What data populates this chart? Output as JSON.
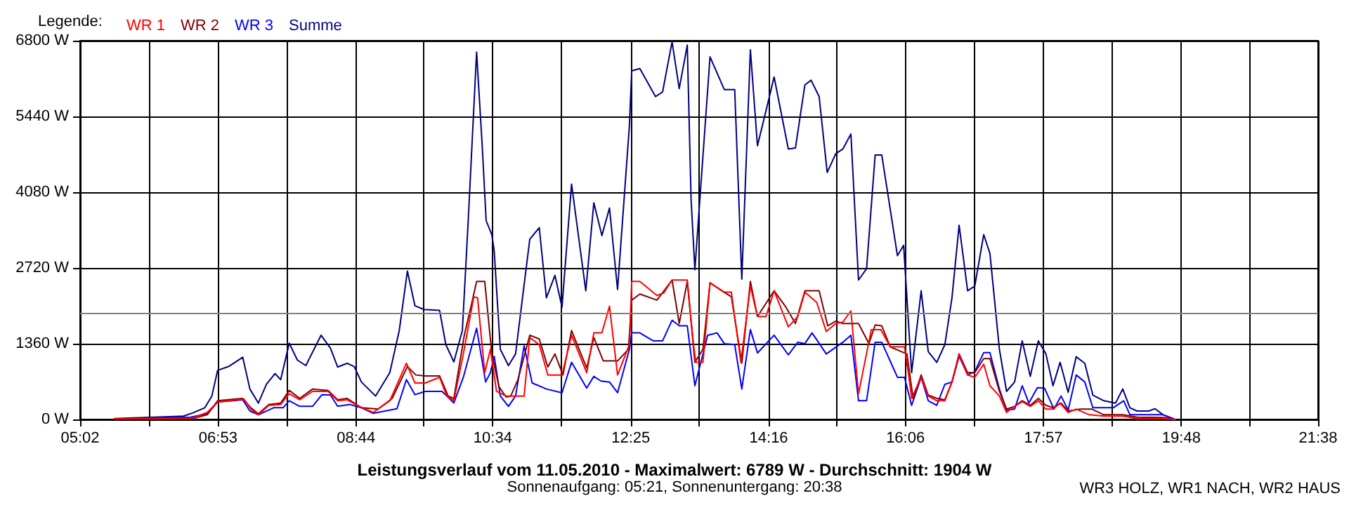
{
  "chart_data": {
    "type": "line",
    "title": "Leistungsverlauf vom 11.05.2010 - Maximalwert: 6789 W - Durchschnitt: 1904 W",
    "subtitle": "Sonnenaufgang: 05:21, Sonnenuntergang: 20:38",
    "legend_title": "Legende:",
    "legend": "top left",
    "grid": true,
    "marker": "none",
    "line_style": "solid",
    "annotations": [
      "WR3 HOLZ, WR1 NACH, WR2 HAUS"
    ],
    "xlim": [
      5.0333,
      21.6333
    ],
    "xticks": [
      {
        "value": 5.0333,
        "label": "05:02"
      },
      {
        "value": 5.956,
        "label": null
      },
      {
        "value": 6.8833,
        "label": "06:53"
      },
      {
        "value": 7.8,
        "label": null
      },
      {
        "value": 8.7333,
        "label": "08:44"
      },
      {
        "value": 9.644,
        "label": null
      },
      {
        "value": 10.5667,
        "label": "10:34"
      },
      {
        "value": 11.489,
        "label": null
      },
      {
        "value": 12.4167,
        "label": "12:25"
      },
      {
        "value": 13.333,
        "label": null
      },
      {
        "value": 14.2667,
        "label": "14:16"
      },
      {
        "value": 15.178,
        "label": null
      },
      {
        "value": 16.1,
        "label": "16:06"
      },
      {
        "value": 17.022,
        "label": null
      },
      {
        "value": 17.95,
        "label": "17:57"
      },
      {
        "value": 18.867,
        "label": null
      },
      {
        "value": 19.8,
        "label": "19:48"
      },
      {
        "value": 20.711,
        "label": null
      },
      {
        "value": 21.6333,
        "label": "21:38"
      }
    ],
    "ylim": [
      0,
      6800
    ],
    "yticks": [
      {
        "value": 0,
        "label": "0 W"
      },
      {
        "value": 1360,
        "label": "1360 W"
      },
      {
        "value": 2720,
        "label": "2720 W"
      },
      {
        "value": 4080,
        "label": "4080 W"
      },
      {
        "value": 5440,
        "label": "5440 W"
      },
      {
        "value": 6800,
        "label": "6800 W"
      }
    ],
    "ref_lines": [
      {
        "axis": "y",
        "value": 1904,
        "color": "#808080"
      }
    ],
    "series": [
      {
        "name": "Summe",
        "color": "#000080",
        "x": [
          5.497,
          6.42,
          6.546,
          6.706,
          6.8,
          6.877,
          7.024,
          7.214,
          7.31,
          7.424,
          7.532,
          7.647,
          7.723,
          7.838,
          7.946,
          8.06,
          8.264,
          8.391,
          8.487,
          8.614,
          8.709,
          8.805,
          8.995,
          9.186,
          9.313,
          9.422,
          9.523,
          9.644,
          9.854,
          9.937,
          10.045,
          10.159,
          10.236,
          10.35,
          10.427,
          10.478,
          10.554,
          10.586,
          10.668,
          10.777,
          10.872,
          11.063,
          11.19,
          11.286,
          11.4,
          11.495,
          11.623,
          11.814,
          11.922,
          12.03,
          12.132,
          12.24,
          12.399,
          12.43,
          12.539,
          12.749,
          12.844,
          12.971,
          13.067,
          13.175,
          13.226,
          13.277,
          13.321,
          13.48,
          13.671,
          13.811,
          13.906,
          14.021,
          14.116,
          14.231,
          14.339,
          14.53,
          14.625,
          14.752,
          14.835,
          14.943,
          15.051,
          15.166,
          15.261,
          15.369,
          15.471,
          15.579,
          15.694,
          15.783,
          15.993,
          16.076,
          16.183,
          16.311,
          16.406,
          16.52,
          16.629,
          16.724,
          16.82,
          16.934,
          17.03,
          17.15,
          17.233,
          17.36,
          17.456,
          17.564,
          17.666,
          17.774,
          17.882,
          17.984,
          18.079,
          18.174,
          18.282,
          18.39,
          18.505,
          18.613,
          18.76,
          18.918,
          19.014,
          19.11,
          19.205,
          19.364,
          19.447,
          19.555,
          19.714
        ],
        "values": [
          17,
          60,
          118,
          210,
          420,
          880,
          950,
          1117,
          546,
          294,
          630,
          823,
          714,
          1369,
          1067,
          966,
          1512,
          1277,
          941,
          1008,
          949,
          672,
          420,
          840,
          1596,
          2663,
          2041,
          1974,
          1957,
          1344,
          1033,
          1596,
          3528,
          6594,
          4872,
          3570,
          3318,
          3024,
          1260,
          966,
          1176,
          3234,
          3444,
          2184,
          2587,
          2016,
          4225,
          2310,
          3889,
          3301,
          3797,
          2335,
          5275,
          6258,
          6300,
          5796,
          5880,
          6779,
          5939,
          6720,
          3948,
          2688,
          3528,
          6510,
          5922,
          5922,
          2520,
          6636,
          4914,
          5544,
          6149,
          4855,
          4872,
          6006,
          6090,
          5796,
          4435,
          4771,
          4855,
          5124,
          2503,
          2705,
          4746,
          4746,
          2940,
          3125,
          840,
          2310,
          1218,
          1025,
          1344,
          2184,
          3486,
          2310,
          2394,
          3318,
          2982,
          1260,
          504,
          672,
          1411,
          773,
          1411,
          1176,
          605,
          1025,
          487,
          1126,
          1008,
          437,
          336,
          294,
          546,
          210,
          151,
          151,
          193,
          84,
          0
        ]
      },
      {
        "name": "WR 3",
        "color": "#0000ff",
        "x": [
          5.497,
          6.515,
          6.738,
          6.877,
          7.214,
          7.31,
          7.424,
          7.628,
          7.755,
          7.838,
          7.978,
          8.15,
          8.277,
          8.391,
          8.487,
          8.646,
          8.805,
          8.964,
          9.282,
          9.409,
          9.523,
          9.663,
          9.886,
          9.969,
          10.045,
          10.172,
          10.35,
          10.471,
          10.535,
          10.586,
          10.668,
          10.777,
          10.872,
          10.987,
          11.095,
          11.286,
          11.495,
          11.623,
          11.826,
          11.922,
          12.017,
          12.132,
          12.24,
          12.399,
          12.43,
          12.539,
          12.717,
          12.844,
          12.971,
          13.067,
          13.175,
          13.277,
          13.353,
          13.448,
          13.575,
          13.671,
          13.811,
          13.906,
          14.021,
          14.116,
          14.339,
          14.53,
          14.657,
          14.752,
          14.848,
          15.039,
          15.261,
          15.369,
          15.471,
          15.579,
          15.694,
          15.783,
          15.993,
          16.088,
          16.183,
          16.311,
          16.406,
          16.52,
          16.629,
          16.724,
          16.82,
          16.934,
          17.03,
          17.15,
          17.233,
          17.36,
          17.456,
          17.564,
          17.666,
          17.755,
          17.869,
          17.965,
          18.092,
          18.187,
          18.282,
          18.39,
          18.505,
          18.613,
          18.887,
          19.027,
          19.11,
          19.555,
          19.714
        ],
        "values": [
          8,
          42,
          101,
          311,
          353,
          151,
          84,
          210,
          210,
          336,
          235,
          235,
          445,
          437,
          235,
          269,
          210,
          109,
          193,
          714,
          445,
          504,
          504,
          395,
          294,
          756,
          1638,
          672,
          840,
          1134,
          420,
          235,
          420,
          1319,
          655,
          546,
          479,
          1025,
          563,
          773,
          689,
          672,
          479,
          1260,
          1554,
          1554,
          1411,
          1411,
          1781,
          1680,
          1680,
          605,
          1008,
          1512,
          1554,
          1361,
          1344,
          546,
          1613,
          1193,
          1512,
          1159,
          1386,
          1361,
          1554,
          1176,
          1386,
          1512,
          336,
          336,
          1386,
          1386,
          756,
          756,
          252,
          756,
          336,
          252,
          630,
          672,
          1134,
          798,
          857,
          1201,
          1201,
          546,
          168,
          185,
          605,
          294,
          571,
          563,
          185,
          420,
          168,
          798,
          672,
          210,
          210,
          336,
          84,
          84,
          0
        ]
      },
      {
        "name": "WR 2",
        "color": "#800000",
        "x": [
          5.497,
          6.546,
          6.738,
          6.877,
          7.214,
          7.322,
          7.424,
          7.564,
          7.723,
          7.838,
          7.978,
          8.15,
          8.359,
          8.487,
          8.614,
          8.805,
          9.028,
          9.218,
          9.422,
          9.536,
          9.663,
          9.854,
          9.969,
          10.045,
          10.185,
          10.287,
          10.35,
          10.459,
          10.554,
          10.65,
          10.745,
          10.808,
          10.904,
          11.063,
          11.19,
          11.305,
          11.4,
          11.508,
          11.623,
          11.826,
          11.922,
          12.049,
          12.24,
          12.386,
          12.43,
          12.539,
          12.768,
          12.971,
          13.067,
          13.175,
          13.277,
          13.385,
          13.48,
          13.639,
          13.766,
          13.906,
          14.021,
          14.116,
          14.339,
          14.498,
          14.625,
          14.752,
          14.943,
          15.058,
          15.166,
          15.261,
          15.471,
          15.611,
          15.694,
          15.783,
          15.897,
          16.12,
          16.203,
          16.311,
          16.406,
          16.52,
          16.629,
          16.724,
          16.82,
          16.934,
          17.03,
          17.15,
          17.233,
          17.36,
          17.456,
          17.564,
          17.666,
          17.774,
          17.882,
          17.984,
          18.079,
          18.187,
          18.282,
          18.443,
          18.601,
          18.76,
          19.014,
          19.205,
          19.555,
          19.714
        ],
        "values": [
          8,
          17,
          84,
          336,
          378,
          210,
          101,
          269,
          294,
          521,
          378,
          546,
          521,
          353,
          378,
          210,
          185,
          378,
          949,
          798,
          781,
          781,
          420,
          378,
          1512,
          2100,
          2478,
          2478,
          1176,
          588,
          403,
          420,
          714,
          1512,
          1445,
          941,
          1176,
          798,
          1596,
          924,
          1470,
          1050,
          1050,
          1260,
          2142,
          2251,
          2142,
          2503,
          1722,
          2478,
          1025,
          1260,
          2453,
          2310,
          2201,
          1008,
          2478,
          1848,
          2310,
          2016,
          1722,
          2310,
          2310,
          1680,
          1764,
          1722,
          1722,
          1361,
          1697,
          1680,
          1302,
          1176,
          378,
          798,
          437,
          378,
          353,
          672,
          1176,
          840,
          840,
          1092,
          1092,
          504,
          185,
          235,
          336,
          252,
          378,
          252,
          210,
          294,
          151,
          185,
          185,
          84,
          84,
          42,
          34,
          0
        ]
      },
      {
        "name": "WR 1",
        "color": "#ff0000",
        "x": [
          5.497,
          6.546,
          6.738,
          6.877,
          7.024,
          7.233,
          7.322,
          7.424,
          7.564,
          7.723,
          7.838,
          7.978,
          8.15,
          8.359,
          8.487,
          8.614,
          8.773,
          8.964,
          9.186,
          9.409,
          9.523,
          9.663,
          9.854,
          9.95,
          10.045,
          10.172,
          10.312,
          10.363,
          10.459,
          10.535,
          10.617,
          10.745,
          10.987,
          11.063,
          11.19,
          11.305,
          11.495,
          11.623,
          11.826,
          11.922,
          12.03,
          12.132,
          12.24,
          12.399,
          12.43,
          12.539,
          12.768,
          12.857,
          12.971,
          13.175,
          13.258,
          13.29,
          13.385,
          13.48,
          13.671,
          13.766,
          13.894,
          14.021,
          14.116,
          14.231,
          14.339,
          14.53,
          14.657,
          14.752,
          14.911,
          15.039,
          15.166,
          15.261,
          15.369,
          15.471,
          15.643,
          15.77,
          15.897,
          16.088,
          16.139,
          16.184,
          16.311,
          16.406,
          16.52,
          16.629,
          16.724,
          16.82,
          16.934,
          17.03,
          17.15,
          17.233,
          17.36,
          17.456,
          17.564,
          17.666,
          17.774,
          17.882,
          17.984,
          18.079,
          18.174,
          18.282,
          18.39,
          18.567,
          18.76,
          19.014,
          19.205,
          19.555,
          19.714
        ],
        "values": [
          8,
          25,
          126,
          311,
          336,
          361,
          185,
          84,
          252,
          269,
          462,
          353,
          504,
          504,
          336,
          353,
          235,
          126,
          336,
          1008,
          655,
          655,
          756,
          420,
          336,
          1176,
          2201,
          2184,
          840,
          1260,
          504,
          420,
          420,
          1470,
          1344,
          798,
          798,
          1512,
          840,
          1554,
          1554,
          2033,
          798,
          1344,
          2478,
          2478,
          2226,
          2268,
          2503,
          2503,
          1344,
          1025,
          1025,
          2453,
          2285,
          2285,
          1025,
          2394,
          1848,
          1848,
          2310,
          1663,
          1848,
          2285,
          2100,
          1579,
          1722,
          1747,
          1949,
          462,
          1613,
          1613,
          1302,
          1302,
          840,
          378,
          756,
          420,
          336,
          336,
          672,
          1176,
          798,
          756,
          991,
          605,
          420,
          126,
          235,
          319,
          235,
          336,
          185,
          185,
          294,
          126,
          185,
          84,
          59,
          59,
          17,
          17,
          0
        ]
      }
    ]
  }
}
